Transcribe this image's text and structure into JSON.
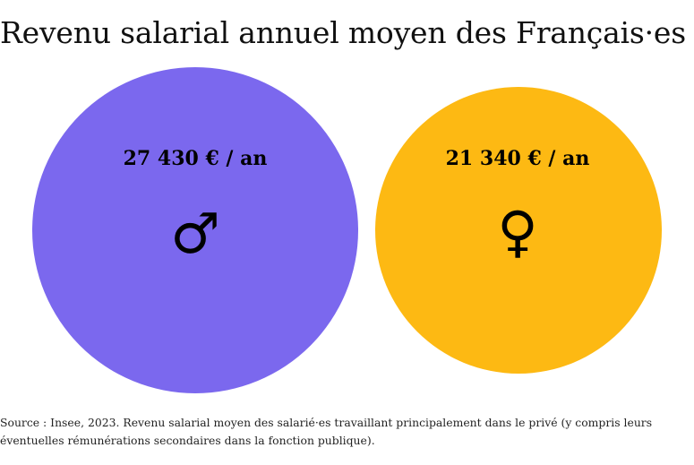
{
  "title": "Revenu salarial annuel moyen des Français·es",
  "source": "Source : Insee, 2023. Revenu salarial moyen des salarié·es travaillant principalement dans le privé (y compris leurs éventuelles rémunérations secondaires dans la fonction publique).",
  "chart_data": {
    "type": "bubble",
    "title": "Revenu salarial annuel moyen des Français·es",
    "unit": "€ / an",
    "bubbles": [
      {
        "label": "27 430 € / an",
        "value": 27430,
        "symbol": "♂",
        "symbol_name": "male-symbol-icon",
        "color": "#7b68ee"
      },
      {
        "label": "21 340 € / an",
        "value": 21340,
        "symbol": "♀",
        "symbol_name": "female-symbol-icon",
        "color": "#fdb913"
      }
    ]
  }
}
